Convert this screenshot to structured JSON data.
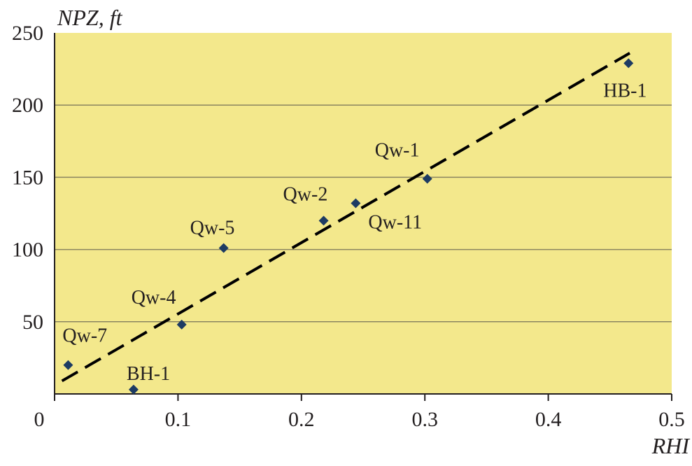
{
  "chart_data": {
    "type": "scatter",
    "title": "",
    "xlabel": "RHI",
    "ylabel": "NPZ, ft",
    "xlim": [
      0,
      0.5
    ],
    "ylim": [
      0,
      250
    ],
    "xticks": [
      "0",
      "0.1",
      "0.2",
      "0.3",
      "0.4",
      "0.5"
    ],
    "yticks": [
      "50",
      "100",
      "150",
      "200",
      "250"
    ],
    "grid": "horizontal",
    "points": [
      {
        "label": "Qw-7",
        "x": 0.011,
        "y": 20
      },
      {
        "label": "BH-1",
        "x": 0.064,
        "y": 3
      },
      {
        "label": "Qw-4",
        "x": 0.103,
        "y": 48
      },
      {
        "label": "Qw-5",
        "x": 0.137,
        "y": 101
      },
      {
        "label": "Qw-2",
        "x": 0.218,
        "y": 120
      },
      {
        "label": "Qw-11",
        "x": 0.244,
        "y": 132
      },
      {
        "label": "Qw-1",
        "x": 0.302,
        "y": 149
      },
      {
        "label": "HB-1",
        "x": 0.465,
        "y": 229
      }
    ],
    "trendline": {
      "style": "dashed",
      "x": [
        0.006,
        0.466
      ],
      "y": [
        9,
        236
      ]
    },
    "colors": {
      "background": "#f3e88c",
      "marker": "#1d3b63",
      "grid": "#8a8560",
      "line": "#000000"
    }
  }
}
